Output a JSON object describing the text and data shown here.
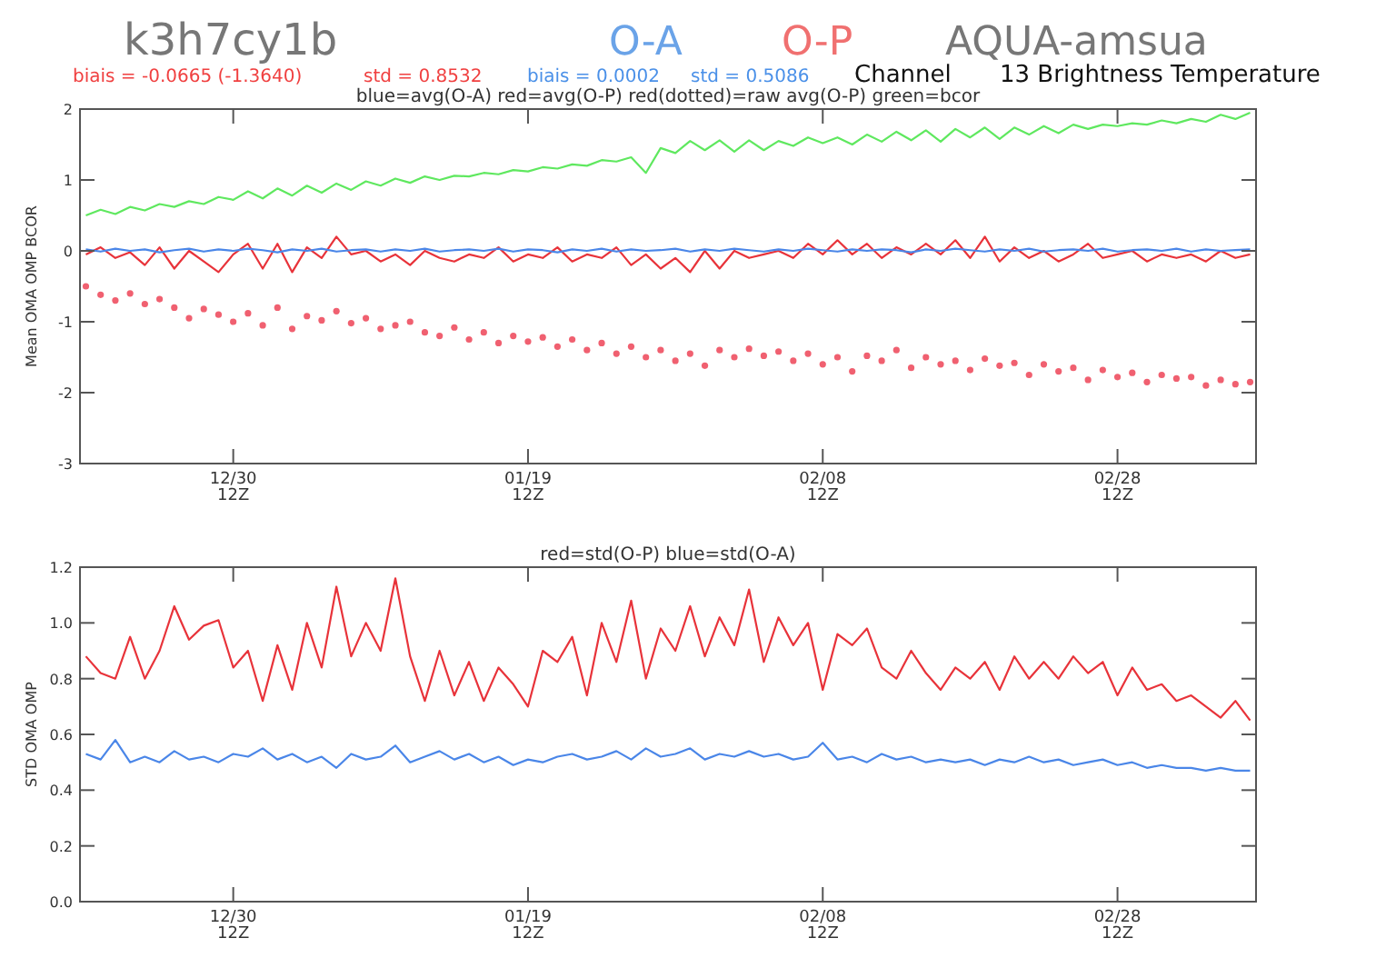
{
  "chart_data": [
    {
      "type": "line",
      "title": "k3h7cy1b",
      "subtitle": "blue=avg(O-A) red=avg(O-P) red(dotted)=raw avg(O-P) green=bcor",
      "ylabel": "Mean OMA OMP BCOR",
      "annotations": [
        "O-A",
        "O-P",
        "AQUA-amsua",
        "biais = -0.0665 (-1.3640)",
        "std = 0.8532",
        "biais = 0.0002",
        "std = 0.5086",
        "Channel",
        "13 Brightness Temperature"
      ],
      "categories": [
        null,
        null,
        null,
        null,
        null,
        null,
        null,
        null,
        null,
        null,
        "12/30\n12Z",
        null,
        null,
        null,
        null,
        null,
        null,
        null,
        null,
        null,
        null,
        null,
        null,
        null,
        null,
        null,
        null,
        null,
        null,
        null,
        "01/19\n12Z",
        null,
        null,
        null,
        null,
        null,
        null,
        null,
        null,
        null,
        null,
        null,
        null,
        null,
        null,
        null,
        null,
        null,
        null,
        null,
        "02/08\n12Z",
        null,
        null,
        null,
        null,
        null,
        null,
        null,
        null,
        null,
        null,
        null,
        null,
        null,
        null,
        null,
        null,
        null,
        null,
        null,
        "02/28\n12Z",
        null,
        null,
        null,
        null,
        null,
        null,
        null,
        null,
        null
      ],
      "ylim": [
        -3,
        2
      ],
      "yticks": [
        -3,
        -2,
        -1,
        0,
        1,
        2
      ],
      "grid": false,
      "series": [
        {
          "color": "#5fe85f",
          "values": [
            0.5,
            0.58,
            0.52,
            0.62,
            0.57,
            0.66,
            0.62,
            0.7,
            0.66,
            0.76,
            0.72,
            0.84,
            0.74,
            0.88,
            0.78,
            0.92,
            0.82,
            0.95,
            0.86,
            0.98,
            0.92,
            1.02,
            0.96,
            1.05,
            1.0,
            1.06,
            1.05,
            1.1,
            1.08,
            1.14,
            1.12,
            1.18,
            1.16,
            1.22,
            1.2,
            1.28,
            1.26,
            1.32,
            1.1,
            1.45,
            1.38,
            1.55,
            1.42,
            1.56,
            1.4,
            1.56,
            1.42,
            1.55,
            1.48,
            1.6,
            1.52,
            1.6,
            1.5,
            1.64,
            1.54,
            1.68,
            1.56,
            1.7,
            1.54,
            1.72,
            1.6,
            1.74,
            1.58,
            1.74,
            1.64,
            1.76,
            1.66,
            1.78,
            1.72,
            1.78,
            1.76,
            1.8,
            1.78,
            1.84,
            1.8,
            1.86,
            1.82,
            1.92,
            1.86,
            1.95
          ]
        },
        {
          "color": "#e8333a",
          "values": [
            -0.05,
            0.05,
            -0.1,
            -0.02,
            -0.2,
            0.05,
            -0.25,
            0.0,
            -0.15,
            -0.3,
            -0.05,
            0.1,
            -0.25,
            0.1,
            -0.3,
            0.05,
            -0.1,
            0.2,
            -0.05,
            0.0,
            -0.15,
            -0.05,
            -0.2,
            0.0,
            -0.1,
            -0.15,
            -0.05,
            -0.1,
            0.05,
            -0.15,
            -0.05,
            -0.1,
            0.05,
            -0.15,
            -0.05,
            -0.1,
            0.05,
            -0.2,
            -0.05,
            -0.25,
            -0.1,
            -0.3,
            0.0,
            -0.25,
            0.0,
            -0.1,
            -0.05,
            0.0,
            -0.1,
            0.1,
            -0.05,
            0.15,
            -0.05,
            0.1,
            -0.1,
            0.05,
            -0.05,
            0.1,
            -0.05,
            0.15,
            -0.1,
            0.2,
            -0.15,
            0.05,
            -0.1,
            0.0,
            -0.15,
            -0.05,
            0.1,
            -0.1,
            -0.05,
            0.0,
            -0.15,
            -0.05,
            -0.1,
            -0.05,
            -0.15,
            0.0,
            -0.1,
            -0.05
          ]
        },
        {
          "color": "#4a86e8",
          "values": [
            0.02,
            -0.01,
            0.03,
            0.0,
            0.02,
            -0.02,
            0.01,
            0.03,
            -0.01,
            0.02,
            0.0,
            0.03,
            0.01,
            -0.02,
            0.02,
            0.0,
            0.03,
            -0.01,
            0.01,
            0.02,
            -0.01,
            0.02,
            0.0,
            0.03,
            -0.01,
            0.01,
            0.02,
            0.0,
            0.03,
            -0.01,
            0.02,
            0.01,
            -0.02,
            0.02,
            0.0,
            0.03,
            -0.01,
            0.02,
            0.0,
            0.01,
            0.03,
            -0.01,
            0.02,
            0.0,
            0.03,
            0.01,
            -0.01,
            0.02,
            0.0,
            0.03,
            0.01,
            -0.01,
            0.02,
            0.0,
            0.02,
            0.01,
            -0.02,
            0.02,
            0.0,
            0.03,
            0.01,
            -0.01,
            0.02,
            0.0,
            0.03,
            -0.01,
            0.01,
            0.02,
            0.0,
            0.03,
            -0.01,
            0.01,
            0.02,
            0.0,
            0.03,
            -0.01,
            0.02,
            0.0,
            0.01,
            0.02
          ]
        },
        {
          "type": "scatter",
          "marker": "circle",
          "color": "#f06070",
          "values": [
            -0.5,
            -0.62,
            -0.7,
            -0.6,
            -0.75,
            -0.68,
            -0.8,
            -0.95,
            -0.82,
            -0.9,
            -1.0,
            -0.88,
            -1.05,
            -0.8,
            -1.1,
            -0.92,
            -0.98,
            -0.85,
            -1.02,
            -0.95,
            -1.1,
            -1.05,
            -1.0,
            -1.15,
            -1.2,
            -1.08,
            -1.25,
            -1.15,
            -1.3,
            -1.2,
            -1.28,
            -1.22,
            -1.35,
            -1.25,
            -1.4,
            -1.3,
            -1.45,
            -1.35,
            -1.5,
            -1.4,
            -1.55,
            -1.45,
            -1.62,
            -1.4,
            -1.5,
            -1.38,
            -1.48,
            -1.42,
            -1.55,
            -1.45,
            -1.6,
            -1.5,
            -1.7,
            -1.48,
            -1.55,
            -1.4,
            -1.65,
            -1.5,
            -1.6,
            -1.55,
            -1.68,
            -1.52,
            -1.62,
            -1.58,
            -1.75,
            -1.6,
            -1.7,
            -1.65,
            -1.82,
            -1.68,
            -1.78,
            -1.72,
            -1.85,
            -1.75,
            -1.8,
            -1.78,
            -1.9,
            -1.82,
            -1.88,
            -1.85
          ]
        }
      ]
    },
    {
      "type": "line",
      "subtitle": "red=std(O-P) blue=std(O-A)",
      "ylabel": "STD OMA OMP",
      "categories": [
        null,
        null,
        null,
        null,
        null,
        null,
        null,
        null,
        null,
        null,
        "12/30\n12Z",
        null,
        null,
        null,
        null,
        null,
        null,
        null,
        null,
        null,
        null,
        null,
        null,
        null,
        null,
        null,
        null,
        null,
        null,
        null,
        "01/19\n12Z",
        null,
        null,
        null,
        null,
        null,
        null,
        null,
        null,
        null,
        null,
        null,
        null,
        null,
        null,
        null,
        null,
        null,
        null,
        null,
        "02/08\n12Z",
        null,
        null,
        null,
        null,
        null,
        null,
        null,
        null,
        null,
        null,
        null,
        null,
        null,
        null,
        null,
        null,
        null,
        null,
        null,
        "02/28\n12Z",
        null,
        null,
        null,
        null,
        null,
        null,
        null,
        null,
        null
      ],
      "ylim": [
        0,
        1.2
      ],
      "yticks": [
        {
          "value": 0,
          "label": "0.0"
        },
        0.2,
        0.4,
        0.6,
        0.8,
        {
          "value": 1,
          "label": "1.0"
        },
        1.2
      ],
      "grid": false,
      "series": [
        {
          "color": "#e8333a",
          "values": [
            0.88,
            0.82,
            0.8,
            0.95,
            0.8,
            0.9,
            1.06,
            0.94,
            0.99,
            1.01,
            0.84,
            0.9,
            0.72,
            0.92,
            0.76,
            1.0,
            0.84,
            1.13,
            0.88,
            1.0,
            0.9,
            1.16,
            0.88,
            0.72,
            0.9,
            0.74,
            0.86,
            0.72,
            0.84,
            0.78,
            0.7,
            0.9,
            0.86,
            0.95,
            0.74,
            1.0,
            0.86,
            1.08,
            0.8,
            0.98,
            0.9,
            1.06,
            0.88,
            1.02,
            0.92,
            1.12,
            0.86,
            1.02,
            0.92,
            1.0,
            0.76,
            0.96,
            0.92,
            0.98,
            0.84,
            0.8,
            0.9,
            0.82,
            0.76,
            0.84,
            0.8,
            0.86,
            0.76,
            0.88,
            0.8,
            0.86,
            0.8,
            0.88,
            0.82,
            0.86,
            0.74,
            0.84,
            0.76,
            0.78,
            0.72,
            0.74,
            0.7,
            0.66,
            0.72,
            0.65
          ]
        },
        {
          "color": "#4a86e8",
          "values": [
            0.53,
            0.51,
            0.58,
            0.5,
            0.52,
            0.5,
            0.54,
            0.51,
            0.52,
            0.5,
            0.53,
            0.52,
            0.55,
            0.51,
            0.53,
            0.5,
            0.52,
            0.48,
            0.53,
            0.51,
            0.52,
            0.56,
            0.5,
            0.52,
            0.54,
            0.51,
            0.53,
            0.5,
            0.52,
            0.49,
            0.51,
            0.5,
            0.52,
            0.53,
            0.51,
            0.52,
            0.54,
            0.51,
            0.55,
            0.52,
            0.53,
            0.55,
            0.51,
            0.53,
            0.52,
            0.54,
            0.52,
            0.53,
            0.51,
            0.52,
            0.57,
            0.51,
            0.52,
            0.5,
            0.53,
            0.51,
            0.52,
            0.5,
            0.51,
            0.5,
            0.51,
            0.49,
            0.51,
            0.5,
            0.52,
            0.5,
            0.51,
            0.49,
            0.5,
            0.51,
            0.49,
            0.5,
            0.48,
            0.49,
            0.48,
            0.48,
            0.47,
            0.48,
            0.47,
            0.47
          ]
        }
      ]
    }
  ]
}
